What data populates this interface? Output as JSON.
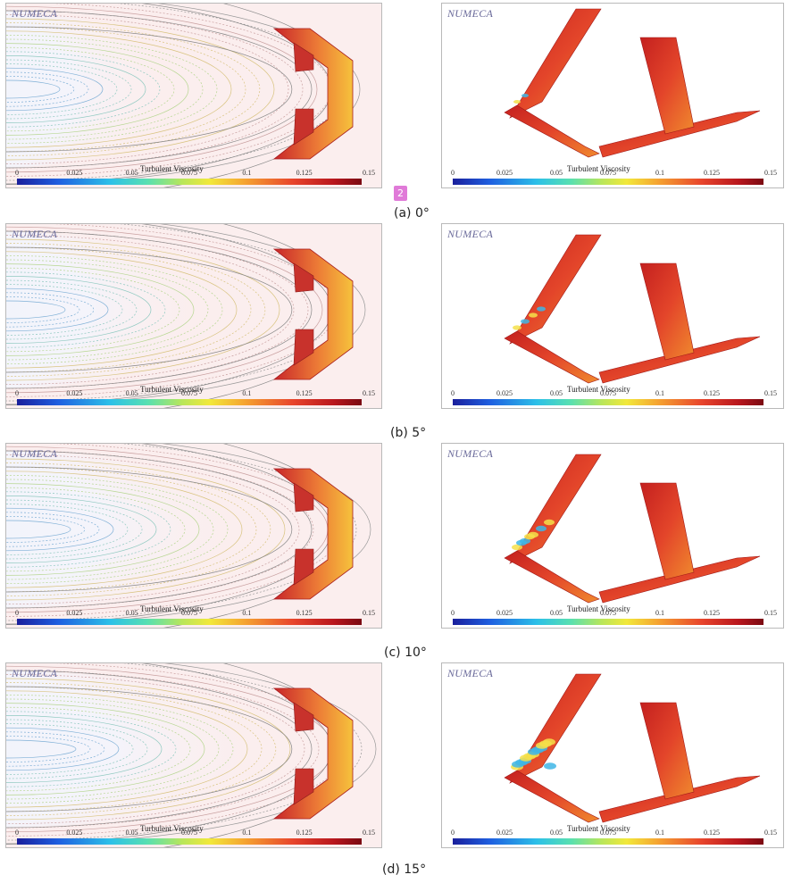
{
  "brand": "NUMECA",
  "colorbar": {
    "title": "Turbulent Viscosity",
    "ticks": [
      "0",
      "0.025",
      "0.05",
      "0.075",
      "0.1",
      "0.125",
      "0.15"
    ]
  },
  "page_marker": "2",
  "rows": [
    {
      "caption": "(a) 0°"
    },
    {
      "caption": "(b) 5°"
    },
    {
      "caption": "(c) 10°"
    },
    {
      "caption": "(d) 15°"
    }
  ],
  "colors": {
    "brand": "#6a6a9a",
    "left_bg": "#fbeeee",
    "right_bg": "#ffffff",
    "badge": "#e07ad8"
  }
}
